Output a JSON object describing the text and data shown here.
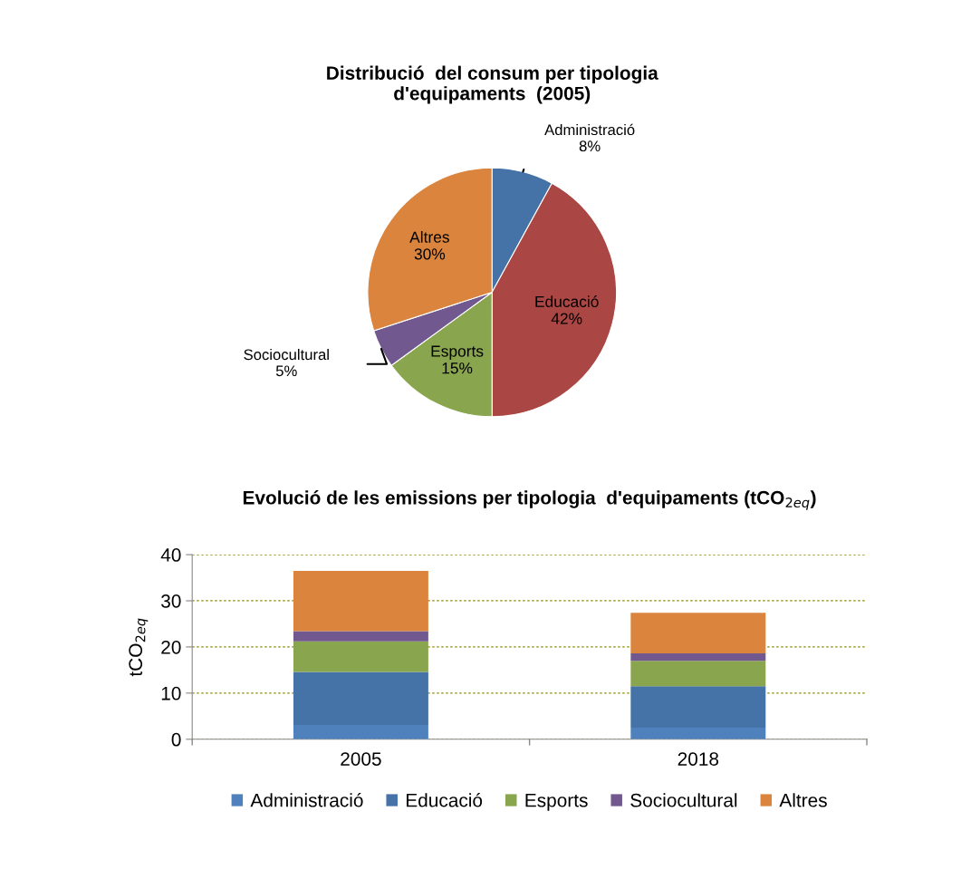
{
  "chart_data": [
    {
      "type": "pie",
      "title": "Distribució  del consum per tipologia\nd'equipaments  (2005)",
      "categories": [
        "Administració",
        "Educació",
        "Esports",
        "Sociocultural",
        "Altres"
      ],
      "values": [
        8,
        42,
        15,
        5,
        30
      ],
      "value_labels": [
        "8%",
        "42%",
        "15%",
        "5%",
        "30%"
      ],
      "colors": [
        "#4572a7",
        "#aa4643",
        "#89a54e",
        "#71588f",
        "#db843d"
      ]
    },
    {
      "type": "bar",
      "stacked": true,
      "title": "Evolució de les emissions per tipologia  d'equipaments (tCO$_{2eq}$)",
      "ylabel": "tCO$_{2eq}$",
      "categories": [
        "2005",
        "2018"
      ],
      "ylim": [
        0,
        40
      ],
      "yticks": [
        0,
        10,
        20,
        30,
        40
      ],
      "grid": "y",
      "legend": "bottom",
      "series": [
        {
          "name": "Administració",
          "color": "#4f81bd",
          "values": [
            3.1,
            2.5
          ]
        },
        {
          "name": "Educació",
          "color": "#4572a7",
          "values": [
            11.5,
            9.0
          ]
        },
        {
          "name": "Esports",
          "color": "#89a54e",
          "values": [
            6.6,
            5.5
          ]
        },
        {
          "name": "Sociocultural",
          "color": "#71588f",
          "values": [
            2.2,
            1.6
          ]
        },
        {
          "name": "Altres",
          "color": "#db843d",
          "values": [
            13.1,
            8.8
          ]
        }
      ]
    }
  ]
}
